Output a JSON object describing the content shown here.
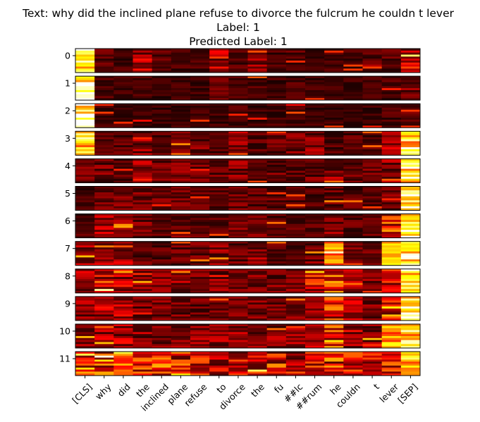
{
  "chart_data": {
    "type": "heatmap",
    "title_lines": [
      "Text: why did the inclined plane refuse to divorce the fulcrum he couldn t lever",
      "Label: 1",
      "Predicted Label: 1"
    ],
    "row_labels": [
      "0",
      "1",
      "2",
      "3",
      "4",
      "5",
      "6",
      "7",
      "8",
      "9",
      "10",
      "11"
    ],
    "tokens": [
      "[CLS]",
      "why",
      "did",
      "the",
      "inclined",
      "plane",
      "refuse",
      "to",
      "divorce",
      "the",
      "fu",
      "##lc",
      "##rum",
      "he",
      "couldn",
      "t",
      "lever",
      "[SEP]"
    ],
    "colormap": "hot",
    "heads_per_layer": 12,
    "layer_token_intensity": [
      [
        0.95,
        0.15,
        0.12,
        0.3,
        0.15,
        0.12,
        0.12,
        0.3,
        0.15,
        0.3,
        0.12,
        0.15,
        0.1,
        0.12,
        0.12,
        0.2,
        0.15,
        0.4
      ],
      [
        0.98,
        0.12,
        0.1,
        0.12,
        0.1,
        0.1,
        0.1,
        0.15,
        0.12,
        0.12,
        0.12,
        0.12,
        0.1,
        0.1,
        0.1,
        0.1,
        0.12,
        0.25
      ],
      [
        0.99,
        0.1,
        0.1,
        0.1,
        0.1,
        0.1,
        0.1,
        0.1,
        0.12,
        0.1,
        0.12,
        0.1,
        0.1,
        0.1,
        0.1,
        0.1,
        0.12,
        0.15
      ],
      [
        0.85,
        0.15,
        0.15,
        0.25,
        0.15,
        0.2,
        0.2,
        0.15,
        0.25,
        0.15,
        0.2,
        0.2,
        0.25,
        0.15,
        0.15,
        0.15,
        0.3,
        0.85
      ],
      [
        0.2,
        0.2,
        0.15,
        0.25,
        0.2,
        0.2,
        0.18,
        0.18,
        0.22,
        0.18,
        0.18,
        0.18,
        0.18,
        0.25,
        0.18,
        0.18,
        0.25,
        0.95
      ],
      [
        0.12,
        0.18,
        0.2,
        0.2,
        0.18,
        0.18,
        0.15,
        0.15,
        0.18,
        0.15,
        0.18,
        0.15,
        0.15,
        0.18,
        0.15,
        0.15,
        0.2,
        0.95
      ],
      [
        0.18,
        0.3,
        0.22,
        0.22,
        0.15,
        0.18,
        0.15,
        0.15,
        0.22,
        0.18,
        0.15,
        0.15,
        0.15,
        0.22,
        0.15,
        0.15,
        0.5,
        0.95
      ],
      [
        0.35,
        0.3,
        0.28,
        0.18,
        0.15,
        0.18,
        0.18,
        0.25,
        0.2,
        0.25,
        0.15,
        0.15,
        0.2,
        0.7,
        0.2,
        0.18,
        0.7,
        0.9
      ],
      [
        0.28,
        0.45,
        0.35,
        0.22,
        0.22,
        0.25,
        0.2,
        0.22,
        0.22,
        0.22,
        0.22,
        0.22,
        0.4,
        0.5,
        0.3,
        0.22,
        0.4,
        0.95
      ],
      [
        0.28,
        0.3,
        0.3,
        0.2,
        0.2,
        0.2,
        0.2,
        0.2,
        0.22,
        0.2,
        0.2,
        0.2,
        0.25,
        0.45,
        0.3,
        0.2,
        0.4,
        0.95
      ],
      [
        0.28,
        0.3,
        0.3,
        0.25,
        0.25,
        0.25,
        0.3,
        0.25,
        0.25,
        0.25,
        0.25,
        0.25,
        0.3,
        0.55,
        0.3,
        0.25,
        0.7,
        0.85
      ],
      [
        0.4,
        0.55,
        0.65,
        0.45,
        0.5,
        0.45,
        0.4,
        0.4,
        0.4,
        0.45,
        0.45,
        0.35,
        0.4,
        0.5,
        0.4,
        0.4,
        0.45,
        0.75
      ]
    ]
  }
}
